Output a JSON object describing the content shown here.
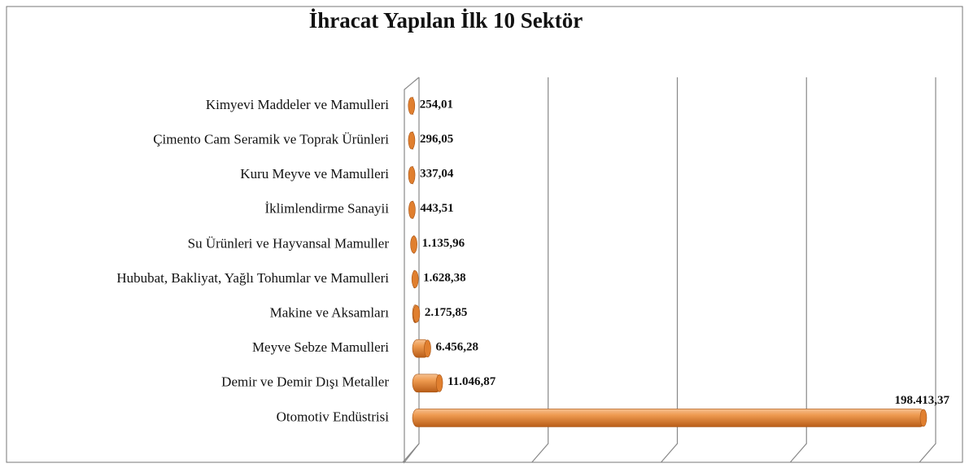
{
  "chart_data": {
    "type": "bar",
    "orientation": "horizontal",
    "title": "İhracat Yapılan İlk 10 Sektör",
    "categories": [
      "Kimyevi Maddeler ve Mamulleri",
      "Çimento Cam Seramik ve Toprak Ürünleri",
      "Kuru Meyve ve Mamulleri",
      "İklimlendirme Sanayii",
      "Su Ürünleri ve Hayvansal Mamuller",
      "Hububat, Bakliyat, Yağlı Tohumlar ve Mamulleri",
      "Makine ve Aksamları",
      "Meyve Sebze Mamulleri",
      "Demir ve Demir Dışı Metaller",
      "Otomotiv Endüstrisi"
    ],
    "values": [
      254.01,
      296.05,
      337.04,
      443.51,
      1135.96,
      1628.38,
      2175.85,
      6456.28,
      11046.87,
      198413.37
    ],
    "value_labels": [
      "254,01",
      "296,05",
      "337,04",
      "443,51",
      "1.135,96",
      "1.628,38",
      "2.175,85",
      "6.456,28",
      "11.046,87",
      "198.413,37"
    ],
    "color": "#e8893a",
    "xlim": [
      0,
      200000
    ],
    "xticks": [
      0,
      50000,
      100000,
      150000,
      200000
    ],
    "grid": true
  }
}
